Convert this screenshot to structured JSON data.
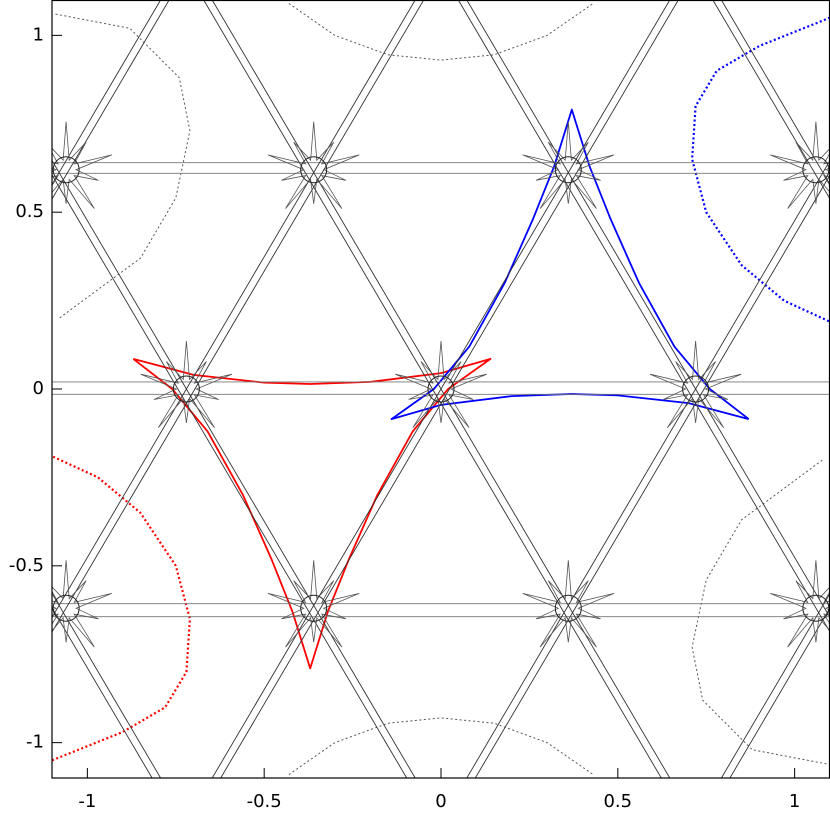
{
  "chart_data": {
    "type": "line",
    "xlim": [
      -1.1,
      1.1
    ],
    "ylim": [
      -1.1,
      1.1
    ],
    "xticks": [
      -1,
      -0.5,
      0,
      0.5,
      1
    ],
    "yticks": [
      -1,
      -0.5,
      0,
      0.5,
      1
    ],
    "series": [
      {
        "color": "#ff0000",
        "x": [
          -0.87,
          -0.7,
          -0.5,
          -0.37,
          -0.2,
          0,
          0.14,
          0.02,
          -0.08,
          -0.18,
          -0.26,
          -0.32,
          -0.37,
          -0.42,
          -0.48,
          -0.56,
          -0.66,
          -0.76,
          -0.87
        ],
        "y": [
          0.085,
          0.04,
          0.018,
          0.014,
          0.02,
          0.045,
          0.085,
          0.0,
          -0.12,
          -0.3,
          -0.48,
          -0.63,
          -0.79,
          -0.63,
          -0.48,
          -0.3,
          -0.12,
          0.0,
          0.085
        ]
      },
      {
        "color": "#0000ff",
        "x": [
          0.87,
          0.7,
          0.5,
          0.37,
          0.2,
          0,
          -0.14,
          -0.02,
          0.08,
          0.18,
          0.26,
          0.32,
          0.37,
          0.42,
          0.48,
          0.56,
          0.66,
          0.76,
          0.87
        ],
        "y": [
          -0.085,
          -0.04,
          -0.018,
          -0.014,
          -0.02,
          -0.045,
          -0.085,
          0.0,
          0.12,
          0.3,
          0.48,
          0.63,
          0.79,
          0.63,
          0.48,
          0.3,
          0.12,
          0.0,
          -0.085
        ]
      },
      {
        "color": "#0000ff",
        "dash": true,
        "x": [
          1.1,
          0.9,
          0.78,
          0.72,
          0.71,
          0.75,
          0.85,
          0.97,
          1.1
        ],
        "y": [
          1.05,
          0.97,
          0.9,
          0.8,
          0.65,
          0.5,
          0.35,
          0.25,
          0.19
        ]
      },
      {
        "color": "#ff0000",
        "dash": true,
        "x": [
          -1.1,
          -0.9,
          -0.78,
          -0.72,
          -0.71,
          -0.75,
          -0.85,
          -0.97,
          -1.1
        ],
        "y": [
          -1.05,
          -0.97,
          -0.9,
          -0.8,
          -0.65,
          -0.5,
          -0.35,
          -0.25,
          -0.19
        ]
      },
      {
        "color": "#555555",
        "dash": true,
        "x": [
          -1.09,
          -0.88,
          -0.74,
          -0.71,
          -0.75,
          -0.85,
          -1.08
        ],
        "y": [
          1.06,
          1.02,
          0.88,
          0.73,
          0.54,
          0.37,
          0.2
        ]
      },
      {
        "color": "#555555",
        "dash": true,
        "x": [
          1.09,
          0.88,
          0.74,
          0.71,
          0.75,
          0.85,
          1.08
        ],
        "y": [
          -1.06,
          -1.02,
          -0.88,
          -0.73,
          -0.54,
          -0.37,
          -0.2
        ]
      },
      {
        "color": "#555555",
        "dash": true,
        "x": [
          -0.43,
          -0.3,
          -0.15,
          0,
          0.15,
          0.3,
          0.43
        ],
        "y": [
          1.09,
          1.0,
          0.945,
          0.93,
          0.945,
          1.0,
          1.09
        ]
      },
      {
        "color": "#555555",
        "dash": true,
        "x": [
          -0.43,
          -0.3,
          -0.15,
          0,
          0.15,
          0.3,
          0.43
        ],
        "y": [
          -1.09,
          -1.0,
          -0.945,
          -0.93,
          -0.945,
          -1.0,
          -1.09
        ]
      },
      {
        "color": "#777777",
        "x": [
          -1.1,
          1.1
        ],
        "y": [
          0.64,
          0.64
        ]
      },
      {
        "color": "#777777",
        "x": [
          -1.1,
          1.1
        ],
        "y": [
          0.61,
          0.61
        ]
      },
      {
        "color": "#777777",
        "x": [
          -1.1,
          1.1
        ],
        "y": [
          0.02,
          0.02
        ]
      },
      {
        "color": "#777777",
        "x": [
          -1.1,
          1.1
        ],
        "y": [
          -0.015,
          -0.015
        ]
      },
      {
        "color": "#777777",
        "x": [
          -1.1,
          1.1
        ],
        "y": [
          -0.607,
          -0.607
        ]
      },
      {
        "color": "#777777",
        "x": [
          -1.1,
          1.1
        ],
        "y": [
          -0.644,
          -0.644
        ]
      },
      {
        "color": "#333333",
        "x": [
          -2.087,
          -0.793
        ],
        "y": [
          -1.1,
          1.1
        ]
      },
      {
        "color": "#333333",
        "x": [
          -2.063,
          -0.769
        ],
        "y": [
          -1.1,
          1.1
        ]
      },
      {
        "color": "#333333",
        "x": [
          -1.367,
          -0.073
        ],
        "y": [
          -1.1,
          1.1
        ]
      },
      {
        "color": "#333333",
        "x": [
          -1.343,
          -0.049
        ],
        "y": [
          -1.1,
          1.1
        ]
      },
      {
        "color": "#333333",
        "x": [
          -0.647,
          0.647
        ],
        "y": [
          -1.1,
          1.1
        ]
      },
      {
        "color": "#333333",
        "x": [
          -0.623,
          0.671
        ],
        "y": [
          -1.1,
          1.1
        ]
      },
      {
        "color": "#333333",
        "x": [
          0.073,
          1.367
        ],
        "y": [
          -1.1,
          1.1
        ]
      },
      {
        "color": "#333333",
        "x": [
          0.097,
          1.391
        ],
        "y": [
          -1.1,
          1.1
        ]
      },
      {
        "color": "#333333",
        "x": [
          0.793,
          2.087
        ],
        "y": [
          -1.1,
          1.1
        ]
      },
      {
        "color": "#333333",
        "x": [
          0.817,
          2.111
        ],
        "y": [
          -1.1,
          1.1
        ]
      },
      {
        "color": "#333333",
        "x": [
          -0.793,
          -2.087
        ],
        "y": [
          -1.1,
          1.1
        ]
      },
      {
        "color": "#333333",
        "x": [
          -0.817,
          -2.111
        ],
        "y": [
          -1.1,
          1.1
        ]
      },
      {
        "color": "#333333",
        "x": [
          -0.073,
          -1.367
        ],
        "y": [
          -1.1,
          1.1
        ]
      },
      {
        "color": "#333333",
        "x": [
          -0.097,
          -1.391
        ],
        "y": [
          -1.1,
          1.1
        ]
      },
      {
        "color": "#333333",
        "x": [
          0.647,
          -0.647
        ],
        "y": [
          -1.1,
          1.1
        ]
      },
      {
        "color": "#333333",
        "x": [
          0.623,
          -0.671
        ],
        "y": [
          -1.1,
          1.1
        ]
      },
      {
        "color": "#333333",
        "x": [
          1.367,
          0.073
        ],
        "y": [
          -1.1,
          1.1
        ]
      },
      {
        "color": "#333333",
        "x": [
          1.343,
          0.049
        ],
        "y": [
          -1.1,
          1.1
        ]
      },
      {
        "color": "#333333",
        "x": [
          2.087,
          0.793
        ],
        "y": [
          -1.1,
          1.1
        ]
      },
      {
        "color": "#333333",
        "x": [
          2.063,
          0.769
        ],
        "y": [
          -1.1,
          1.1
        ]
      },
      {
        "color": "#555555",
        "marker": "star",
        "x": [
          -0.72,
          0,
          0.72,
          -1.06,
          -0.36,
          0.36,
          1.06,
          -1.06,
          -0.36,
          0.36,
          1.06
        ],
        "y": [
          0,
          0,
          0,
          0.62,
          0.62,
          0.62,
          0.62,
          -0.62,
          -0.62,
          -0.62,
          -0.62
        ]
      }
    ]
  }
}
